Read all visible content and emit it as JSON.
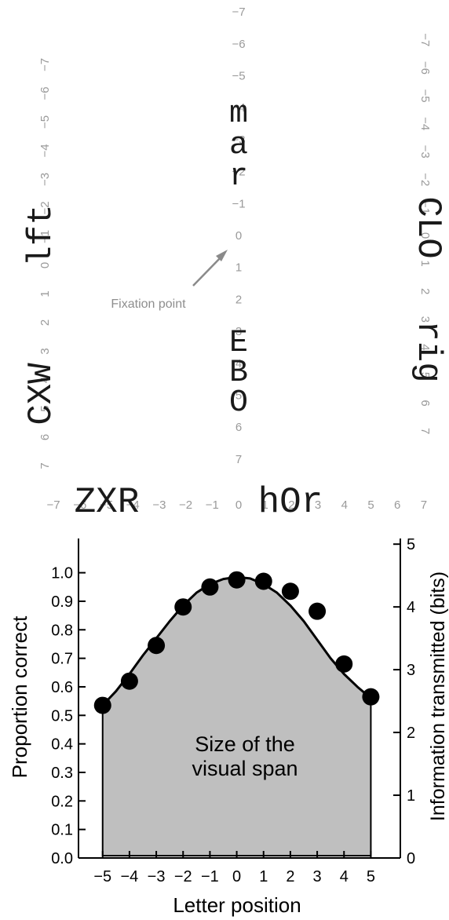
{
  "stimulus": {
    "fixation_label": "Fixation point",
    "scale_numbers": [
      "−7",
      "−6",
      "−5",
      "−4",
      "−3",
      "−2",
      "−1",
      "0",
      "1",
      "2",
      "3",
      "4",
      "5",
      "6",
      "7"
    ],
    "horizontal": {
      "left_letters": "ZXR",
      "right_letters": "hOr"
    },
    "vertical": {
      "upper_letters": [
        "m",
        "a",
        "r"
      ],
      "lower_letters": [
        "E",
        "B",
        "O"
      ]
    },
    "left_diagonal": {
      "outer_letters": "CXW",
      "inner_letters": "lft"
    },
    "right_diagonal": {
      "inner_letters": "rig",
      "outer_letters": "CLO"
    }
  },
  "chart_data": {
    "type": "line",
    "xlabel": "Letter position",
    "ylabel": "Proportion correct",
    "y2label": "Information transmitted (bits)",
    "xlim": [
      -5.9,
      6.1
    ],
    "ylim": [
      0.0,
      1.12
    ],
    "y2lim": [
      0,
      5.09
    ],
    "xticks": [
      -5,
      -4,
      -3,
      -2,
      -1,
      0,
      1,
      2,
      3,
      4,
      5
    ],
    "xtick_labels": [
      "−5",
      "−4",
      "−3",
      "−2",
      "−1",
      "0",
      "1",
      "2",
      "3",
      "4",
      "5"
    ],
    "yticks": [
      0.0,
      0.1,
      0.2,
      0.3,
      0.4,
      0.5,
      0.6,
      0.7,
      0.8,
      0.9,
      1.0
    ],
    "ytick_labels": [
      "0.0",
      "0.1",
      "0.2",
      "0.3",
      "0.4",
      "0.5",
      "0.6",
      "0.7",
      "0.8",
      "0.9",
      "1.0"
    ],
    "y2ticks": [
      0,
      1,
      2,
      3,
      4,
      5
    ],
    "y2tick_labels": [
      "0",
      "1",
      "2",
      "3",
      "4",
      "5"
    ],
    "x": [
      -5,
      -4,
      -3,
      -2,
      -1,
      0,
      1,
      2,
      3,
      4,
      5
    ],
    "series": [
      {
        "values": [
          0.535,
          0.62,
          0.745,
          0.88,
          0.95,
          0.975,
          0.97,
          0.935,
          0.865,
          0.68,
          0.565
        ]
      }
    ],
    "fit_curve": {
      "x": [
        -5,
        -4.5,
        -4,
        -3.5,
        -3,
        -2.5,
        -2,
        -1.5,
        -1,
        -0.5,
        0,
        0.5,
        1,
        1.5,
        2,
        2.5,
        3,
        3.5,
        4,
        4.5,
        5
      ],
      "y": [
        0.535,
        0.585,
        0.645,
        0.71,
        0.77,
        0.83,
        0.885,
        0.93,
        0.96,
        0.978,
        0.985,
        0.98,
        0.96,
        0.93,
        0.885,
        0.83,
        0.765,
        0.7,
        0.645,
        0.6,
        0.56
      ]
    },
    "area_label": [
      "Size of the",
      "visual span"
    ],
    "area_color": "#bfbfbf",
    "marker_color": "#000000"
  }
}
